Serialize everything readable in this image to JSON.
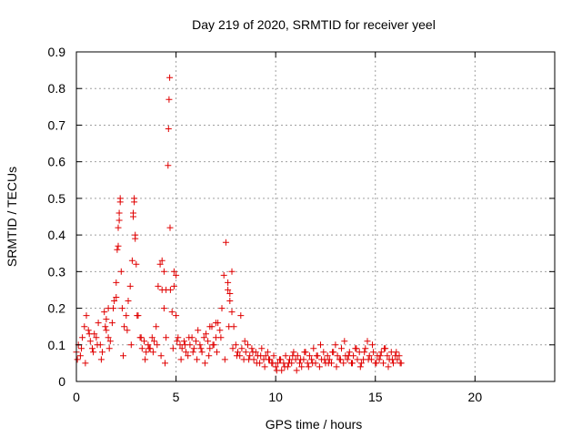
{
  "chart_data": {
    "type": "scatter",
    "title": "Day 219 of 2020, SRMTID for receiver yeel",
    "xlabel": "GPS time / hours",
    "ylabel": "SRMTID / TECUs",
    "xlim": [
      0,
      24
    ],
    "ylim": [
      0,
      0.9
    ],
    "xticks": [
      "0",
      "5",
      "10",
      "15",
      "20"
    ],
    "yticks": [
      "0",
      "0.1",
      "0.2",
      "0.3",
      "0.4",
      "0.5",
      "0.6",
      "0.7",
      "0.8",
      "0.9"
    ],
    "grid": true,
    "marker": "+",
    "color": "#e00000",
    "series": [
      {
        "name": "SRMTID",
        "x": [
          0.0,
          0.1,
          0.2,
          0.3,
          0.4,
          0.5,
          0.6,
          0.7,
          0.8,
          0.9,
          1.0,
          1.1,
          1.2,
          1.3,
          1.4,
          1.5,
          1.6,
          1.7,
          1.8,
          1.9,
          2.0,
          2.05,
          2.1,
          2.15,
          2.2,
          2.25,
          2.3,
          2.4,
          2.5,
          2.6,
          2.7,
          2.8,
          2.85,
          2.9,
          2.95,
          3.0,
          3.1,
          3.2,
          3.3,
          3.4,
          3.5,
          3.6,
          3.7,
          3.8,
          3.9,
          4.0,
          4.1,
          4.2,
          4.3,
          4.4,
          4.5,
          4.6,
          4.62,
          4.65,
          4.68,
          4.7,
          4.72,
          4.8,
          4.9,
          5.0,
          5.1,
          5.2,
          5.3,
          5.4,
          5.5,
          5.6,
          5.7,
          5.8,
          5.9,
          6.0,
          6.1,
          6.2,
          6.3,
          6.4,
          6.5,
          6.6,
          6.7,
          6.8,
          6.9,
          7.0,
          7.1,
          7.2,
          7.3,
          7.4,
          7.5,
          7.6,
          7.7,
          7.8,
          7.9,
          8.0,
          8.1,
          8.2,
          8.3,
          8.4,
          8.5,
          8.6,
          8.7,
          8.8,
          8.9,
          9.0,
          9.1,
          9.2,
          9.3,
          9.4,
          9.5,
          9.6,
          9.7,
          9.8,
          9.9,
          10.0,
          10.1,
          10.2,
          10.3,
          10.4,
          10.5,
          10.6,
          10.7,
          10.8,
          10.9,
          11.0,
          11.1,
          11.2,
          11.3,
          11.4,
          11.5,
          11.6,
          11.7,
          11.8,
          11.9,
          12.0,
          12.1,
          12.2,
          12.3,
          12.4,
          12.5,
          12.6,
          12.7,
          12.8,
          12.9,
          13.0,
          13.1,
          13.2,
          13.3,
          13.4,
          13.5,
          13.6,
          13.7,
          13.8,
          13.9,
          14.0,
          14.1,
          14.2,
          14.3,
          14.4,
          14.5,
          14.6,
          14.7,
          14.8,
          14.9,
          15.0,
          15.1,
          15.2,
          15.3,
          15.4,
          15.5,
          15.6,
          15.7,
          15.8,
          15.9,
          16.0,
          16.1,
          16.2,
          16.3,
          0.05,
          0.25,
          0.45,
          0.65,
          0.85,
          1.05,
          1.25,
          1.45,
          1.65,
          1.85,
          2.35,
          2.55,
          2.75,
          3.05,
          3.25,
          3.45,
          3.65,
          3.85,
          4.05,
          4.25,
          4.45,
          4.85,
          5.05,
          5.25,
          5.45,
          5.65,
          5.85,
          6.05,
          6.25,
          6.45,
          6.65,
          6.85,
          7.05,
          7.25,
          7.45,
          7.65,
          7.85,
          8.05,
          8.25,
          8.45,
          8.65,
          8.85,
          9.05,
          9.25,
          9.45,
          9.65,
          9.85,
          10.05,
          10.25,
          10.45,
          10.65,
          10.85,
          11.05,
          11.25,
          11.45,
          11.65,
          11.85,
          12.05,
          12.25,
          12.45,
          12.65,
          12.85,
          13.05,
          13.25,
          13.45,
          13.65,
          13.85,
          14.05,
          14.25,
          14.45,
          14.65,
          14.85,
          15.05,
          15.25,
          15.45,
          15.65,
          15.85,
          16.05,
          16.25,
          2.1,
          2.15,
          2.2,
          2.85,
          2.9,
          2.95,
          4.3,
          4.4,
          4.5,
          4.9,
          5.0,
          7.6,
          7.7,
          7.8,
          1.5,
          1.6,
          2.0,
          6.7,
          7.0
        ],
        "y": [
          0.08,
          0.1,
          0.07,
          0.12,
          0.15,
          0.18,
          0.14,
          0.11,
          0.09,
          0.13,
          0.12,
          0.16,
          0.1,
          0.08,
          0.19,
          0.14,
          0.12,
          0.11,
          0.16,
          0.22,
          0.27,
          0.36,
          0.42,
          0.46,
          0.5,
          0.3,
          0.2,
          0.15,
          0.18,
          0.22,
          0.26,
          0.33,
          0.45,
          0.5,
          0.4,
          0.32,
          0.18,
          0.12,
          0.09,
          0.11,
          0.08,
          0.1,
          0.09,
          0.12,
          0.11,
          0.15,
          0.26,
          0.32,
          0.25,
          0.2,
          0.12,
          0.59,
          0.69,
          0.77,
          0.83,
          0.42,
          0.25,
          0.19,
          0.3,
          0.18,
          0.12,
          0.1,
          0.09,
          0.11,
          0.08,
          0.07,
          0.1,
          0.12,
          0.09,
          0.11,
          0.14,
          0.1,
          0.08,
          0.12,
          0.13,
          0.11,
          0.09,
          0.15,
          0.1,
          0.12,
          0.16,
          0.14,
          0.2,
          0.29,
          0.38,
          0.25,
          0.22,
          0.3,
          0.15,
          0.1,
          0.08,
          0.07,
          0.09,
          0.06,
          0.08,
          0.1,
          0.07,
          0.09,
          0.06,
          0.08,
          0.07,
          0.05,
          0.09,
          0.06,
          0.07,
          0.08,
          0.06,
          0.05,
          0.07,
          0.04,
          0.05,
          0.06,
          0.03,
          0.05,
          0.07,
          0.04,
          0.06,
          0.05,
          0.08,
          0.06,
          0.07,
          0.05,
          0.04,
          0.06,
          0.08,
          0.05,
          0.07,
          0.06,
          0.09,
          0.05,
          0.07,
          0.04,
          0.06,
          0.08,
          0.05,
          0.07,
          0.06,
          0.05,
          0.08,
          0.1,
          0.07,
          0.06,
          0.09,
          0.05,
          0.07,
          0.06,
          0.08,
          0.05,
          0.07,
          0.09,
          0.06,
          0.08,
          0.05,
          0.06,
          0.09,
          0.11,
          0.07,
          0.06,
          0.08,
          0.05,
          0.07,
          0.06,
          0.08,
          0.05,
          0.09,
          0.07,
          0.06,
          0.08,
          0.05,
          0.07,
          0.06,
          0.07,
          0.05,
          0.06,
          0.09,
          0.05,
          0.13,
          0.08,
          0.1,
          0.06,
          0.15,
          0.09,
          0.2,
          0.07,
          0.14,
          0.1,
          0.18,
          0.12,
          0.06,
          0.09,
          0.08,
          0.1,
          0.07,
          0.05,
          0.09,
          0.11,
          0.06,
          0.1,
          0.12,
          0.08,
          0.06,
          0.09,
          0.05,
          0.07,
          0.1,
          0.08,
          0.12,
          0.06,
          0.15,
          0.09,
          0.07,
          0.18,
          0.11,
          0.06,
          0.08,
          0.05,
          0.07,
          0.04,
          0.06,
          0.05,
          0.03,
          0.06,
          0.04,
          0.05,
          0.07,
          0.03,
          0.06,
          0.08,
          0.04,
          0.05,
          0.07,
          0.1,
          0.06,
          0.05,
          0.08,
          0.04,
          0.06,
          0.11,
          0.07,
          0.05,
          0.09,
          0.04,
          0.08,
          0.06,
          0.1,
          0.05,
          0.07,
          0.09,
          0.04,
          0.06,
          0.08,
          0.05,
          0.37,
          0.44,
          0.49,
          0.46,
          0.49,
          0.39,
          0.33,
          0.3,
          0.25,
          0.26,
          0.29,
          0.27,
          0.24,
          0.19,
          0.17,
          0.2,
          0.23,
          0.15,
          0.16
        ]
      }
    ]
  }
}
